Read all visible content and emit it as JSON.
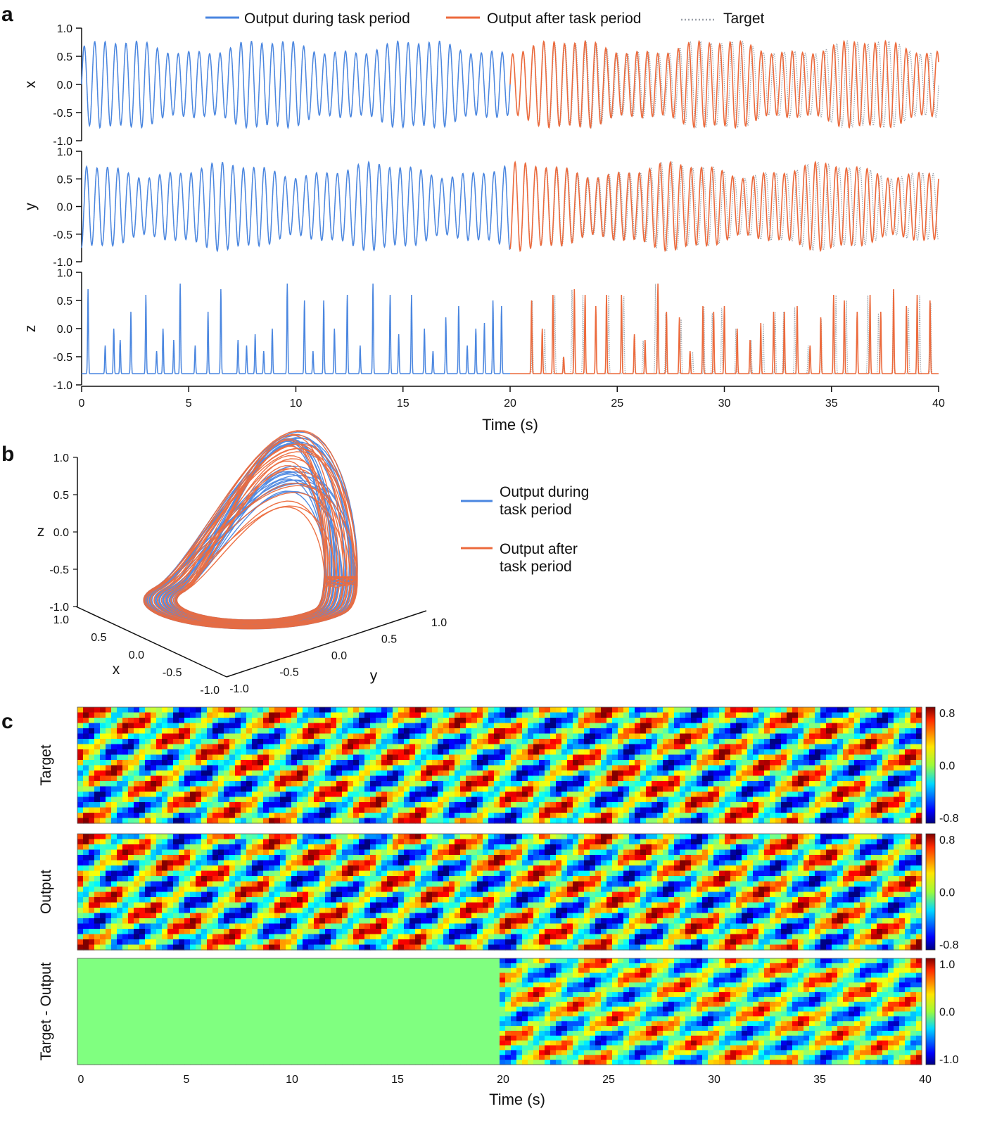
{
  "colors": {
    "during": "#4a86e0",
    "after": "#ec6a3c",
    "target": "#9aa0a8"
  },
  "panels": {
    "a": "a",
    "b": "b",
    "c": "c"
  },
  "chart_data": [
    {
      "id": "a",
      "type": "line",
      "title": "",
      "legend": {
        "position": "top",
        "entries": [
          "Output during task period",
          "Output after task period",
          "Target"
        ]
      },
      "xlabel": "Time (s)",
      "xlim": [
        0,
        40
      ],
      "xticks": [
        0,
        5,
        10,
        15,
        20,
        25,
        30,
        35,
        40
      ],
      "task_end_time": 20,
      "subplots": [
        {
          "ylabel": "x",
          "ylim": [
            -1.0,
            1.0
          ],
          "yticks": [
            "1.0",
            "0.5",
            "0.0",
            "-0.5",
            "-1.0"
          ],
          "amplitude": 0.8,
          "mean": 0.0,
          "cycles_per_second": 2.05
        },
        {
          "ylabel": "y",
          "ylim": [
            -1.0,
            1.0
          ],
          "yticks": [
            "1.0",
            "0.5",
            "0.0",
            "-0.5",
            "-1.0"
          ],
          "amplitude": 0.8,
          "mean": 0.0,
          "cycles_per_second": 2.05
        },
        {
          "ylabel": "z",
          "ylim": [
            -1.0,
            1.0
          ],
          "yticks": [
            "1.0",
            "0.5",
            "0.0",
            "-0.5",
            "-1.0"
          ],
          "baseline": -0.8,
          "peak_times": [
            0.3,
            1.1,
            1.5,
            1.8,
            2.3,
            3.0,
            3.5,
            3.8,
            4.3,
            4.6,
            5.3,
            5.9,
            6.5,
            7.3,
            7.7,
            8.1,
            8.5,
            8.9,
            9.6,
            10.4,
            10.8,
            11.3,
            11.8,
            12.4,
            13.0,
            13.6,
            14.4,
            14.8,
            15.4,
            16.0,
            16.4,
            17.0,
            17.6,
            18.0,
            18.4,
            18.8,
            19.2,
            19.6,
            21.0,
            21.5,
            22.0,
            22.5,
            23.0,
            23.5,
            24.0,
            24.5,
            25.2,
            25.8,
            26.3,
            26.9,
            27.3,
            27.9,
            28.4,
            29.0,
            29.5,
            30.0,
            30.6,
            31.2,
            31.7,
            32.3,
            32.8,
            33.4,
            34.0,
            34.5,
            35.1,
            35.6,
            36.2,
            36.8,
            37.3,
            37.9,
            38.5,
            39.0,
            39.6
          ],
          "peak_values": [
            0.7,
            -0.3,
            0.0,
            -0.2,
            0.3,
            0.6,
            -0.4,
            0.0,
            -0.2,
            0.8,
            -0.3,
            0.3,
            0.7,
            -0.2,
            -0.3,
            -0.1,
            -0.4,
            0.0,
            0.8,
            0.5,
            -0.4,
            0.5,
            0.0,
            0.6,
            -0.3,
            0.8,
            0.6,
            -0.1,
            0.6,
            0.0,
            -0.4,
            0.2,
            0.4,
            -0.3,
            0.0,
            0.1,
            0.5,
            0.4,
            0.5,
            0.0,
            0.6,
            -0.5,
            0.7,
            0.6,
            0.4,
            0.6,
            0.6,
            -0.1,
            -0.2,
            0.8,
            0.3,
            0.2,
            -0.4,
            0.4,
            0.3,
            0.4,
            0.0,
            -0.2,
            0.1,
            0.3,
            0.3,
            0.4,
            -0.3,
            0.2,
            0.6,
            0.5,
            0.3,
            0.6,
            0.3,
            0.7,
            0.4,
            0.6,
            0.5
          ]
        }
      ]
    },
    {
      "id": "b",
      "type": "line",
      "subtype": "3d-trajectory",
      "legend": {
        "position": "right",
        "entries": [
          "Output during\ntask period",
          "Output after\ntask period"
        ]
      },
      "zlabel": "z",
      "zlim": [
        -1.0,
        1.0
      ],
      "zticks": [
        "1.0",
        "0.5",
        "0.0",
        "-0.5",
        "-1.0"
      ],
      "xlabel": "x",
      "xlim": [
        -1.0,
        1.0
      ],
      "xticks": [
        "1.0",
        "0.5",
        "0.0",
        "-0.5",
        "-1.0"
      ],
      "ylabel": "y",
      "ylim": [
        -1.0,
        1.0
      ],
      "yticks": [
        "-1.0",
        "-0.5",
        "0.0",
        "0.5",
        "1.0"
      ]
    },
    {
      "id": "c",
      "type": "heatmap",
      "xlabel": "Time (s)",
      "xlim": [
        0,
        40
      ],
      "xticks": [
        0,
        5,
        10,
        15,
        20,
        25,
        30,
        35,
        40
      ],
      "colormap": "jet",
      "maps": [
        {
          "ylabel": "Target",
          "vmin": -0.8,
          "vmax": 0.8,
          "colorbar_ticks": [
            "0.8",
            "0.0",
            "-0.8"
          ]
        },
        {
          "ylabel": "Output",
          "vmin": -0.8,
          "vmax": 0.8,
          "colorbar_ticks": [
            "0.8",
            "0.0",
            "-0.8"
          ]
        },
        {
          "ylabel": "Target - Output",
          "vmin": -1.0,
          "vmax": 1.0,
          "colorbar_ticks": [
            "1.0",
            "0.0",
            "-1.0"
          ],
          "zero_until": 20
        }
      ]
    }
  ]
}
